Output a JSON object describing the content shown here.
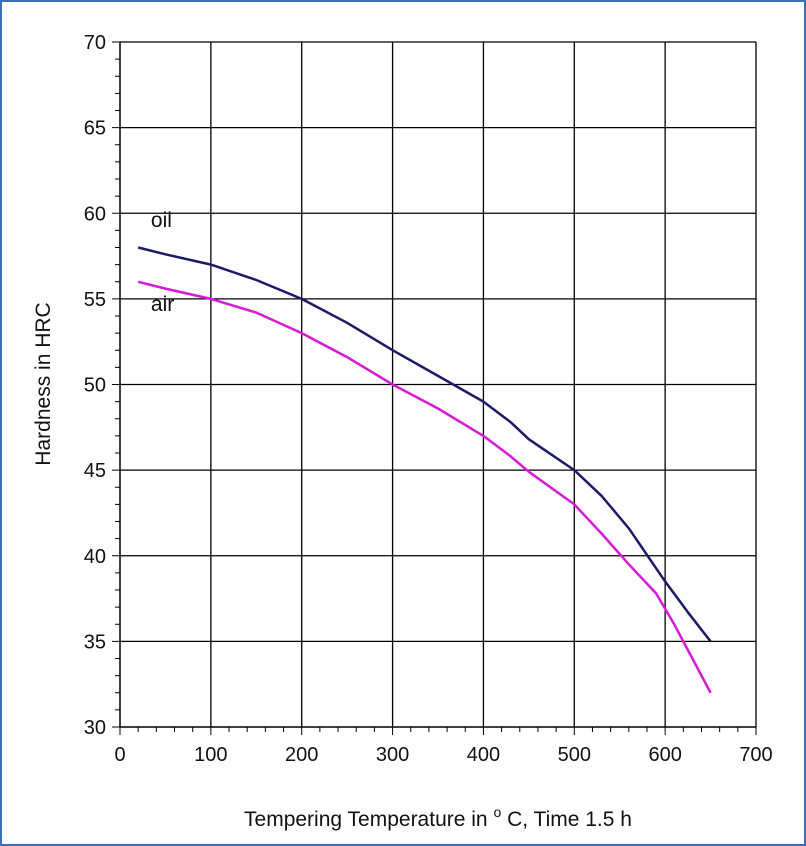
{
  "chart_data": {
    "type": "line",
    "title": "",
    "xlabel_prefix": "Tempering Temperature in ",
    "xlabel_sup": "o",
    "xlabel_suffix": "C, Time 1.5 h",
    "ylabel": "Hardness in HRC",
    "xlim": [
      0,
      700
    ],
    "ylim": [
      30,
      70
    ],
    "x_ticks": [
      0,
      100,
      200,
      300,
      400,
      500,
      600,
      700
    ],
    "y_ticks": [
      30,
      35,
      40,
      45,
      50,
      55,
      60,
      65,
      70
    ],
    "grid": true,
    "legend": "inline-labels",
    "series": [
      {
        "name": "oil",
        "color": "#1a1a66",
        "points": [
          [
            20,
            58
          ],
          [
            50,
            57.6
          ],
          [
            100,
            57
          ],
          [
            150,
            56.1
          ],
          [
            200,
            55
          ],
          [
            250,
            53.6
          ],
          [
            300,
            52
          ],
          [
            350,
            50.5
          ],
          [
            400,
            49
          ],
          [
            430,
            47.8
          ],
          [
            450,
            46.8
          ],
          [
            500,
            45
          ],
          [
            530,
            43.5
          ],
          [
            560,
            41.6
          ],
          [
            600,
            38.5
          ],
          [
            625,
            36.7
          ],
          [
            650,
            35
          ]
        ]
      },
      {
        "name": "air",
        "color": "#d61ad6",
        "points": [
          [
            20,
            56
          ],
          [
            50,
            55.6
          ],
          [
            100,
            55
          ],
          [
            150,
            54.2
          ],
          [
            200,
            53
          ],
          [
            250,
            51.6
          ],
          [
            300,
            50
          ],
          [
            350,
            48.6
          ],
          [
            400,
            47
          ],
          [
            430,
            45.8
          ],
          [
            450,
            44.9
          ],
          [
            500,
            43
          ],
          [
            530,
            41.3
          ],
          [
            560,
            39.5
          ],
          [
            590,
            37.8
          ],
          [
            610,
            36
          ],
          [
            630,
            34
          ],
          [
            650,
            32
          ]
        ]
      }
    ]
  }
}
